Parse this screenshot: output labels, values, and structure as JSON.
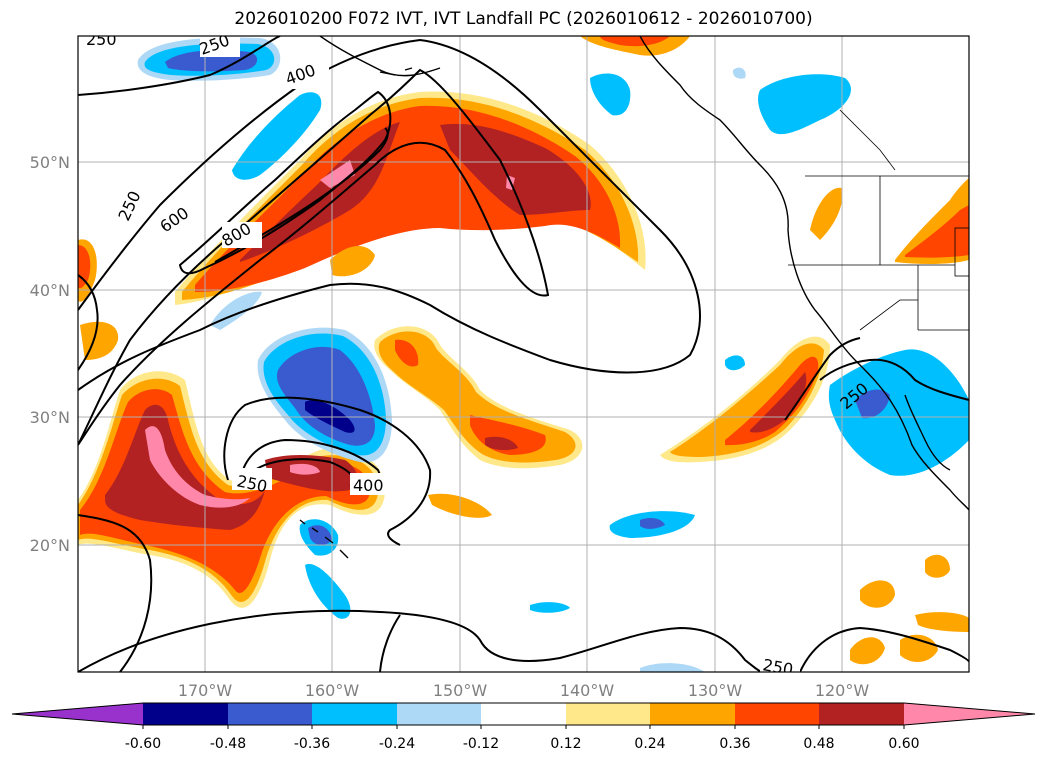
{
  "title": "2026010200 F072 IVT, IVT Landfall PC (2026010612 - 2026010700)",
  "map": {
    "lat_labels": [
      "50°N",
      "40°N",
      "30°N",
      "20°N"
    ],
    "lon_labels": [
      "170°W",
      "160°W",
      "150°W",
      "140°W",
      "130°W",
      "120°W"
    ],
    "contour_labels": [
      "250",
      "400",
      "250",
      "600",
      "800",
      "250",
      "400",
      "250",
      "250",
      "250"
    ],
    "grid": true
  },
  "colorbar": {
    "ticks": [
      "-0.60",
      "-0.48",
      "-0.36",
      "-0.24",
      "-0.12",
      "0.12",
      "0.24",
      "0.36",
      "0.48",
      "0.60"
    ],
    "colors": [
      "#9932cc",
      "#00008b",
      "#3a5bd0",
      "#00bfff",
      "#add8f6",
      "#ffffff",
      "#ffe88a",
      "#ffa500",
      "#ff4500",
      "#b22222",
      "#ff88aa"
    ]
  },
  "colors": {
    "pink": "#ff88aa",
    "darkred": "#b22222",
    "orangered": "#ff4500",
    "orange": "#ffa500",
    "yellow": "#ffe88a",
    "lightblue": "#add8f6",
    "skyblue": "#00bfff",
    "blue": "#3a5bd0",
    "navy": "#00008b"
  }
}
